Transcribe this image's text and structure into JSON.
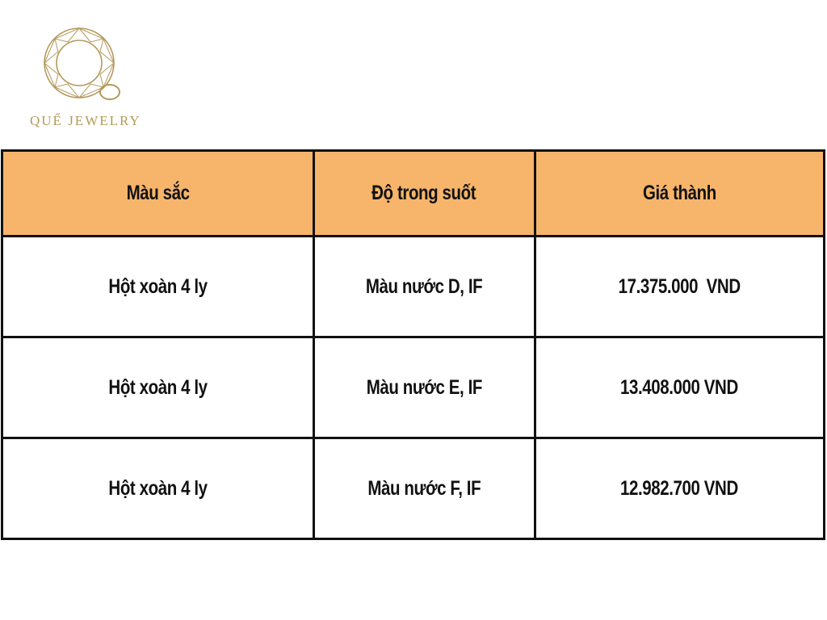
{
  "logo": {
    "brand_name": "QUẾ JEWELRY",
    "color": "#b39a5a"
  },
  "table": {
    "header_color": "#f6b56b",
    "headers": [
      "Màu sắc",
      "Độ trong suốt",
      "Giá thành"
    ],
    "rows": [
      [
        "Hột xoàn 4 ly",
        "Màu nước D, IF",
        "17.375.000  VND"
      ],
      [
        "Hột xoàn 4 ly",
        "Màu nước E, IF",
        "13.408.000 VND"
      ],
      [
        "Hột xoàn 4 ly",
        "Màu nước F, IF",
        "12.982.700 VND"
      ]
    ]
  }
}
